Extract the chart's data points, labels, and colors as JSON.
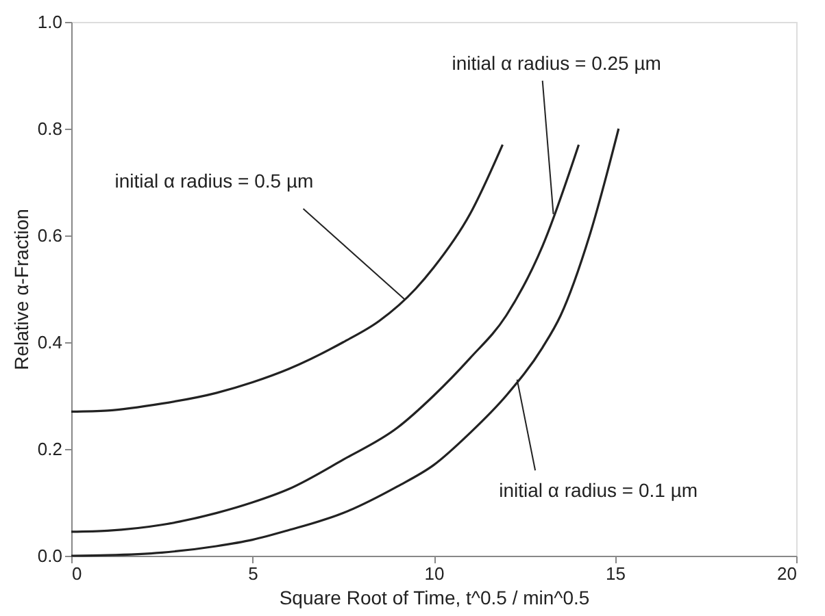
{
  "chart_data": {
    "type": "line",
    "xlabel": "Square Root of Time, t^0.5 / min^0.5",
    "ylabel": "Relative α-Fraction",
    "xlim": [
      0,
      20
    ],
    "xticks": [
      0,
      5,
      10,
      15,
      20
    ],
    "ylim": [
      0,
      1
    ],
    "yticks": [
      {
        "value": 0,
        "label": "0.0"
      },
      {
        "value": 0.2,
        "label": "0.2"
      },
      {
        "value": 0.4,
        "label": "0.4"
      },
      {
        "value": 0.6,
        "label": "0.6"
      },
      {
        "value": 0.8,
        "label": "0.8"
      },
      {
        "value": 1,
        "label": "1.0"
      }
    ],
    "grid": false,
    "marker": "none",
    "line_style": "solid",
    "series": [
      {
        "color": "#222222",
        "x": [
          0,
          1,
          2.5,
          4,
          5,
          6,
          7.5,
          8.5,
          9.5,
          10,
          11,
          11.9
        ],
        "values": [
          0.27,
          0.272,
          0.285,
          0.305,
          0.325,
          0.35,
          0.4,
          0.44,
          0.5,
          0.54,
          0.64,
          0.77
        ]
      },
      {
        "color": "#222222",
        "x": [
          0,
          1,
          2.5,
          4,
          5,
          6,
          7.5,
          9,
          10,
          11,
          12,
          13,
          14
        ],
        "values": [
          0.045,
          0.047,
          0.058,
          0.08,
          0.1,
          0.125,
          0.18,
          0.24,
          0.3,
          0.37,
          0.45,
          0.58,
          0.77
        ]
      },
      {
        "color": "#222222",
        "x": [
          0,
          1,
          2.5,
          4,
          5,
          6,
          7.5,
          9,
          10,
          11,
          12,
          13,
          13.5,
          14.3,
          15.1
        ],
        "values": [
          0,
          0.001,
          0.006,
          0.018,
          0.03,
          0.048,
          0.08,
          0.13,
          0.17,
          0.23,
          0.3,
          0.39,
          0.45,
          0.6,
          0.8
        ]
      }
    ],
    "annotations": [
      {
        "text": "initial α radius = 0.5 µm",
        "x": 9.2,
        "y": 0.48
      },
      {
        "text": "initial α radius = 0.25 µm",
        "x": 13.3,
        "y": 0.64
      },
      {
        "text": "initial α radius = 0.1 µm",
        "x": 12.3,
        "y": 0.33
      }
    ]
  }
}
